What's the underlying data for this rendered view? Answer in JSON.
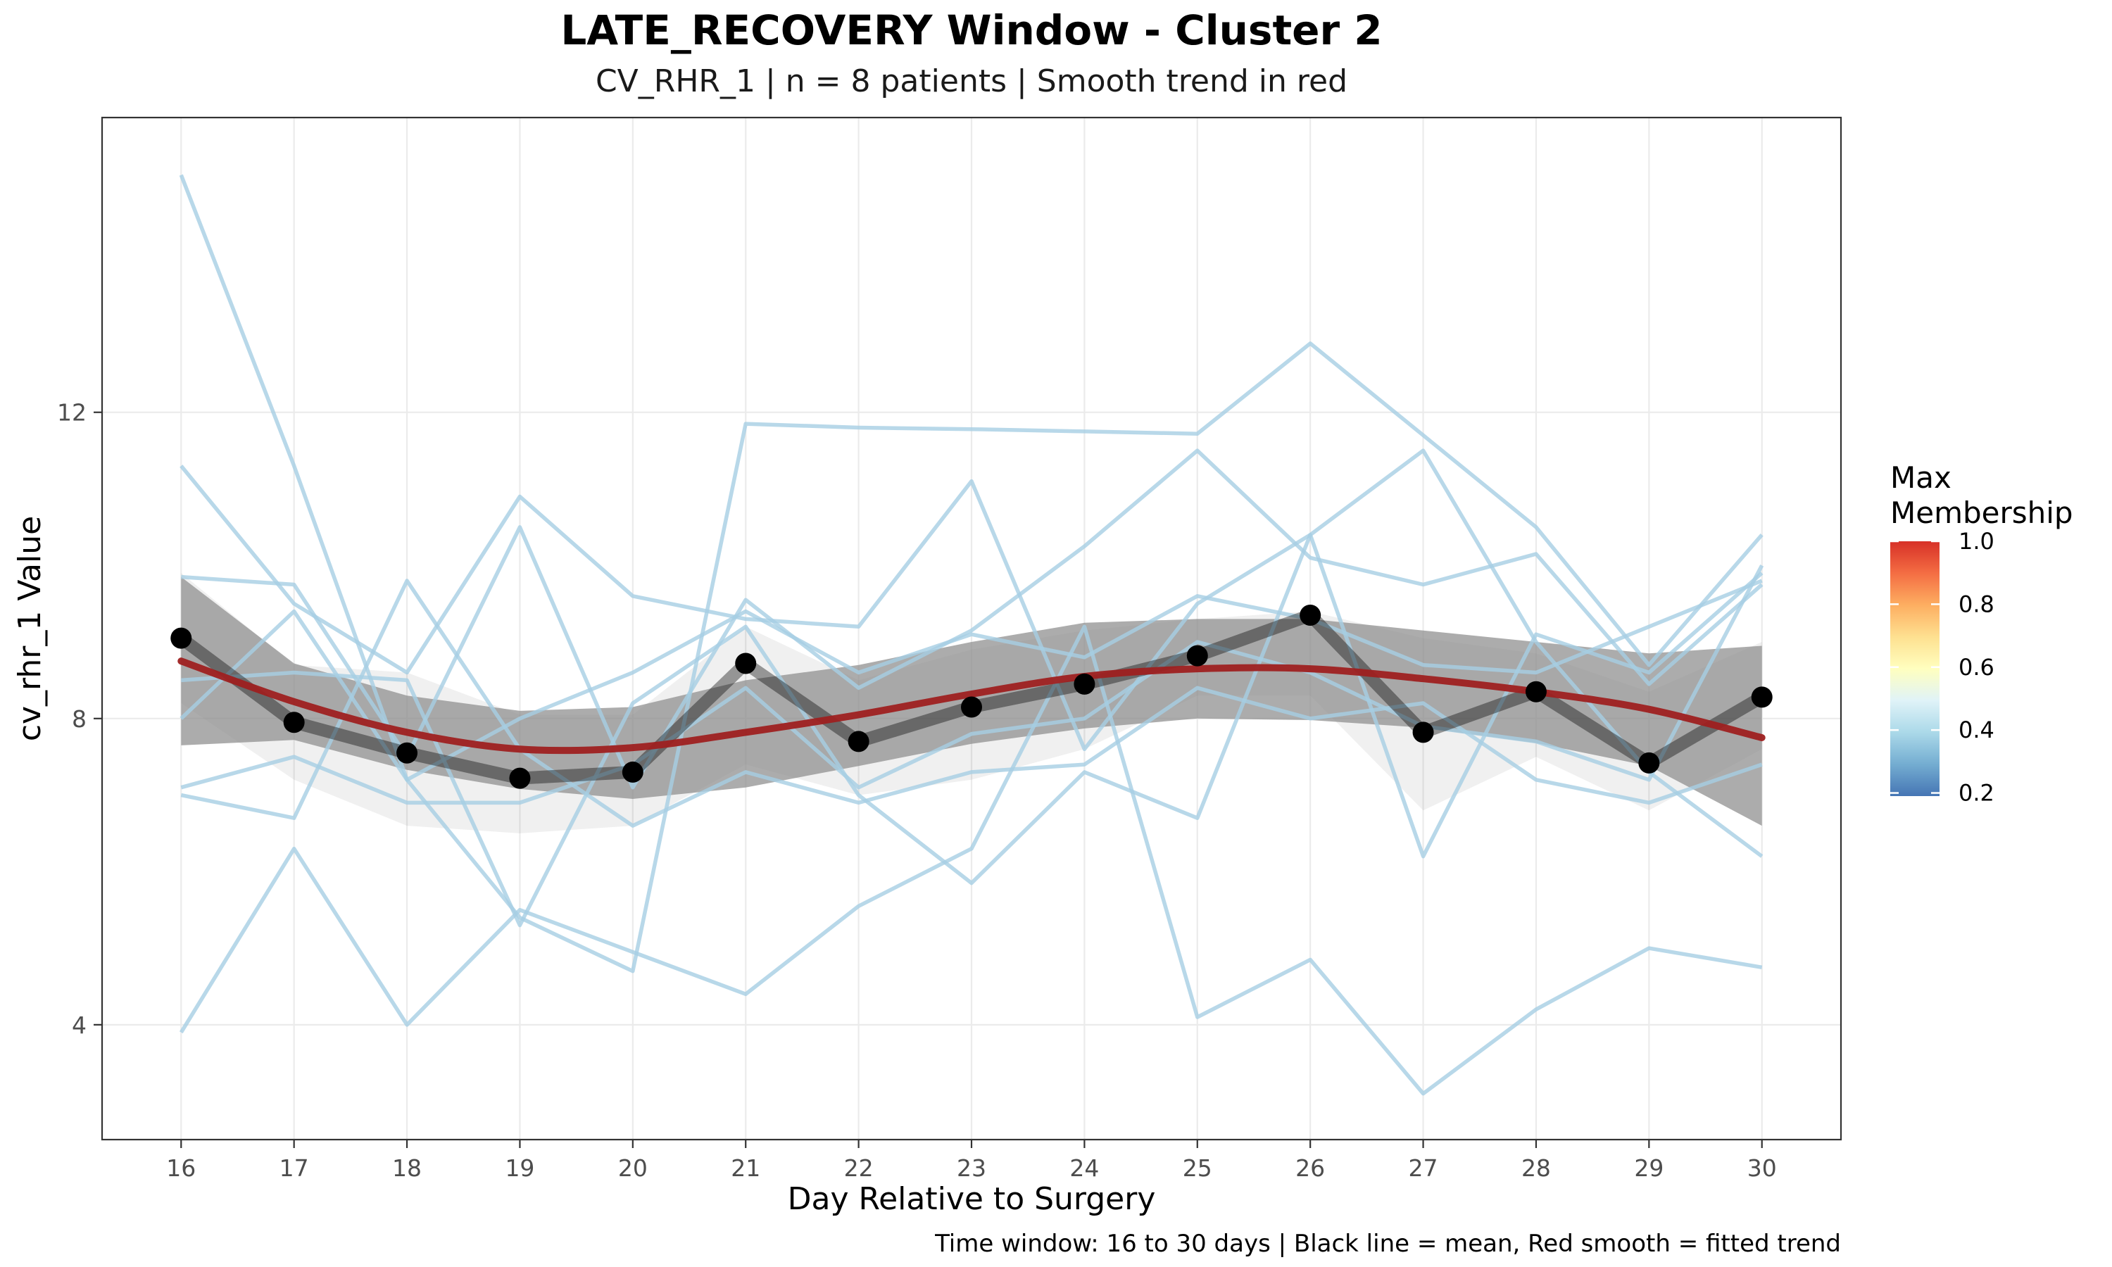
{
  "chart_data": {
    "type": "line",
    "title": "LATE_RECOVERY Window - Cluster 2",
    "subtitle": "CV_RHR_1 | n = 8 patients | Smooth trend in red",
    "xlabel": "Day Relative to Surgery",
    "ylabel": "cv_rhr_1 Value",
    "caption": "Time window: 16 to 30 days | Black line = mean, Red smooth = fitted trend",
    "x": [
      16,
      17,
      18,
      19,
      20,
      21,
      22,
      23,
      24,
      25,
      26,
      27,
      28,
      29,
      30
    ],
    "x_ticks": [
      "16",
      "17",
      "18",
      "19",
      "20",
      "21",
      "22",
      "23",
      "24",
      "25",
      "26",
      "27",
      "28",
      "29",
      "30"
    ],
    "y_ticks": [
      "4",
      "8",
      "12"
    ],
    "y_tick_values": [
      4,
      8,
      12
    ],
    "xlim": [
      15.3,
      30.7
    ],
    "ylim": [
      2.5,
      15.85
    ],
    "grid": true,
    "patient_series": [
      {
        "values": [
          15.1,
          11.3,
          7.2,
          5.4,
          4.7,
          11.85,
          11.8,
          11.78,
          11.75,
          11.72,
          12.9,
          11.7,
          10.5,
          8.7,
          10.4
        ]
      },
      {
        "values": [
          11.3,
          9.5,
          8.6,
          10.9,
          9.6,
          9.3,
          9.2,
          11.1,
          7.6,
          9.5,
          10.4,
          6.2,
          9.1,
          8.6,
          9.9
        ]
      },
      {
        "values": [
          9.85,
          9.75,
          7.5,
          10.5,
          7.1,
          9.55,
          8.4,
          9.15,
          10.25,
          11.5,
          10.1,
          9.75,
          10.15,
          8.45,
          9.75
        ]
      },
      {
        "values": [
          8.0,
          9.4,
          7.2,
          8.0,
          8.6,
          9.4,
          8.6,
          9.1,
          8.8,
          9.6,
          9.3,
          8.7,
          8.6,
          9.2,
          9.8
        ]
      },
      {
        "values": [
          7.0,
          6.7,
          9.8,
          7.6,
          6.6,
          7.3,
          6.9,
          7.3,
          7.4,
          8.4,
          8.0,
          8.2,
          7.2,
          6.9,
          7.4
        ]
      },
      {
        "values": [
          7.1,
          7.5,
          6.9,
          6.9,
          7.4,
          8.4,
          7.1,
          7.8,
          8.0,
          9.0,
          8.6,
          7.9,
          7.7,
          7.2,
          10.0
        ]
      },
      {
        "values": [
          3.9,
          6.3,
          4.0,
          5.5,
          4.95,
          4.4,
          5.55,
          6.3,
          9.2,
          4.1,
          4.85,
          3.1,
          4.2,
          5.0,
          4.75
        ]
      },
      {
        "values": [
          8.5,
          8.6,
          8.5,
          5.3,
          8.2,
          9.2,
          7.0,
          5.85,
          7.3,
          6.7,
          10.4,
          11.5,
          9.0,
          7.3,
          6.2
        ]
      }
    ],
    "patient_color": "#a6cee3",
    "mean_series": {
      "values": [
        9.05,
        7.95,
        7.55,
        7.22,
        7.3,
        8.72,
        7.7,
        8.15,
        8.45,
        8.82,
        9.35,
        7.82,
        8.35,
        7.42,
        8.28
      ],
      "color": "#000000"
    },
    "mean_ci": {
      "upper": [
        9.9,
        8.7,
        8.6,
        8.05,
        8.05,
        9.2,
        8.5,
        8.9,
        9.15,
        9.3,
        9.4,
        9.05,
        8.85,
        8.35,
        9.0
      ],
      "lower": [
        8.2,
        7.2,
        6.6,
        6.5,
        6.6,
        7.4,
        7.0,
        7.2,
        7.6,
        8.3,
        8.3,
        6.8,
        7.5,
        6.8,
        7.6
      ]
    },
    "smooth_series": {
      "values": [
        8.75,
        8.22,
        7.82,
        7.6,
        7.62,
        7.82,
        8.05,
        8.32,
        8.55,
        8.65,
        8.65,
        8.52,
        8.35,
        8.12,
        7.75
      ],
      "upper": [
        9.85,
        8.72,
        8.3,
        8.1,
        8.15,
        8.5,
        8.7,
        9.0,
        9.25,
        9.3,
        9.3,
        9.15,
        9.0,
        8.85,
        8.95
      ],
      "lower": [
        7.65,
        7.72,
        7.33,
        7.08,
        6.95,
        7.1,
        7.38,
        7.67,
        7.87,
        8.0,
        7.98,
        7.88,
        7.68,
        7.38,
        6.6
      ],
      "color": "#9e2020"
    },
    "legend": {
      "title": "Max Membership",
      "title_lines": [
        "Max",
        "Membership"
      ],
      "labels": [
        "1.0",
        "0.8",
        "0.6",
        "0.4",
        "0.2"
      ],
      "label_values": [
        1.0,
        0.8,
        0.6,
        0.4,
        0.2
      ],
      "range": [
        0.19,
        1.0
      ],
      "position": "right",
      "colors": [
        "#4575b4",
        "#74add1",
        "#abd9e9",
        "#e0f3f8",
        "#ffffbf",
        "#fee090",
        "#fdae61",
        "#f46d43",
        "#d73027"
      ]
    }
  }
}
